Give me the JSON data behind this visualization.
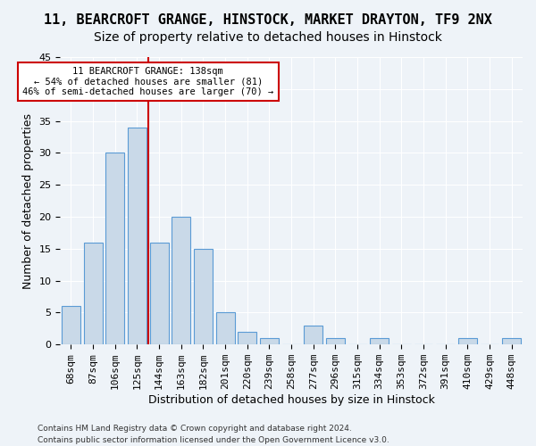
{
  "title": "11, BEARCROFT GRANGE, HINSTOCK, MARKET DRAYTON, TF9 2NX",
  "subtitle": "Size of property relative to detached houses in Hinstock",
  "xlabel": "Distribution of detached houses by size in Hinstock",
  "ylabel": "Number of detached properties",
  "bin_labels": [
    "68sqm",
    "87sqm",
    "106sqm",
    "125sqm",
    "144sqm",
    "163sqm",
    "182sqm",
    "201sqm",
    "220sqm",
    "239sqm",
    "258sqm",
    "277sqm",
    "296sqm",
    "315sqm",
    "334sqm",
    "353sqm",
    "372sqm",
    "391sqm",
    "410sqm",
    "429sqm",
    "448sqm"
  ],
  "bar_heights": [
    6,
    16,
    30,
    34,
    16,
    20,
    15,
    5,
    2,
    1,
    0,
    3,
    1,
    0,
    1,
    0,
    0,
    0,
    1,
    0,
    1
  ],
  "bar_color": "#c9d9e8",
  "bar_edge_color": "#5b9bd5",
  "annotation_line1": "11 BEARCROFT GRANGE: 138sqm",
  "annotation_line2": "← 54% of detached houses are smaller (81)",
  "annotation_line3": "46% of semi-detached houses are larger (70) →",
  "annotation_box_edge": "#cc0000",
  "vline_color": "#cc0000",
  "vline_pos": 3.5,
  "ylim": [
    0,
    45
  ],
  "yticks": [
    0,
    5,
    10,
    15,
    20,
    25,
    30,
    35,
    40,
    45
  ],
  "footer1": "Contains HM Land Registry data © Crown copyright and database right 2024.",
  "footer2": "Contains public sector information licensed under the Open Government Licence v3.0.",
  "bg_color": "#eef3f8",
  "grid_color": "#ffffff",
  "title_fontsize": 11,
  "subtitle_fontsize": 10,
  "label_fontsize": 9,
  "tick_fontsize": 8,
  "annotation_fontsize": 7.5,
  "footer_fontsize": 6.5
}
